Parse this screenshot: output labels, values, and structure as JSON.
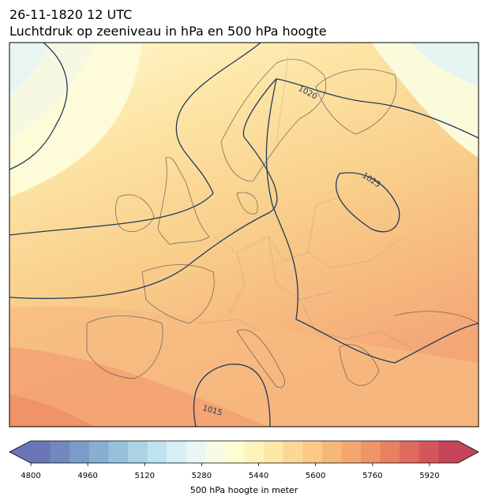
{
  "title": {
    "line1": "26-11-1820 12 UTC",
    "line2": "Luchtdruk op zeeniveau in hPa en 500 hPa hoogte"
  },
  "isobar_labels": [
    "1020",
    "1025",
    "1015"
  ],
  "colorbar": {
    "label": "500 hPa hoogte in meter",
    "min": 4800,
    "max": 6000,
    "step": 40,
    "ticks": [
      4800,
      4960,
      5120,
      5280,
      5440,
      5600,
      5760,
      5920
    ],
    "tick_labels": [
      "4800",
      "4960",
      "5120",
      "5280",
      "5440",
      "5600",
      "5760",
      "5920"
    ],
    "colors": [
      "#6a76b8",
      "#7288bf",
      "#7c9bc8",
      "#88aed2",
      "#97c0dc",
      "#aad3e6",
      "#bfe2ef",
      "#d7eef5",
      "#eaf6f3",
      "#f5fbe4",
      "#fefcd2",
      "#fef4bb",
      "#fde8a8",
      "#fbd995",
      "#f9c985",
      "#f6b879",
      "#f3a670",
      "#ef9468",
      "#e88061",
      "#de6b5c",
      "#d3575a",
      "#c44559"
    ]
  }
}
